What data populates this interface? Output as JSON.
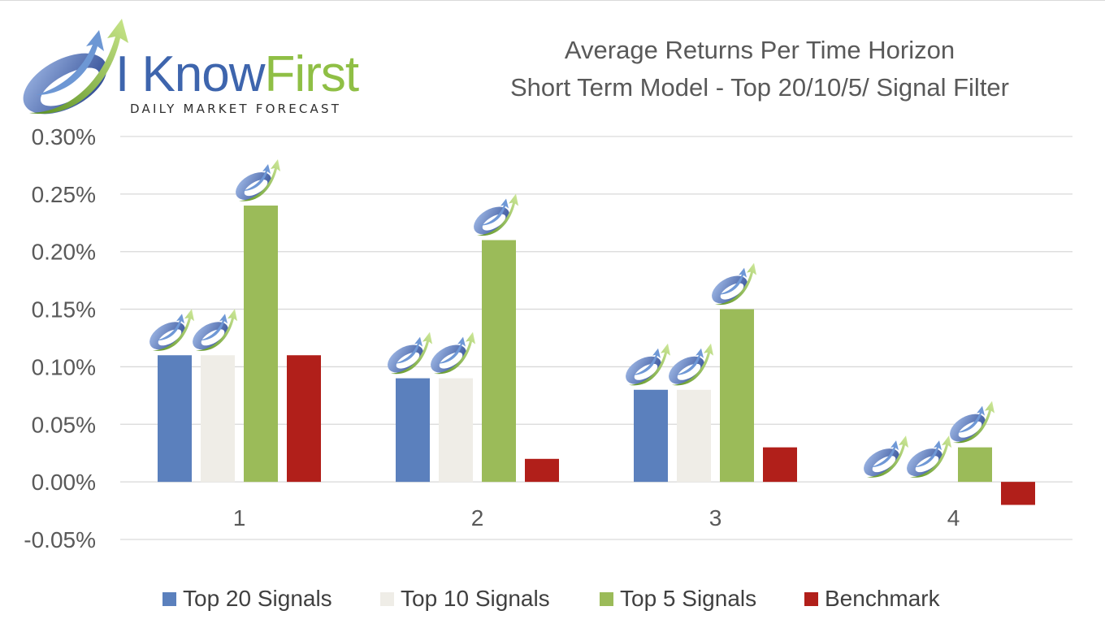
{
  "logo": {
    "word_left": "I Know",
    "word_right": "First",
    "tagline": "DAILY MARKET FORECAST",
    "colors": {
      "blue": "#3e65ad",
      "green": "#8fbf45"
    }
  },
  "chart_data": {
    "type": "bar",
    "title": "Average Returns Per Time Horizon",
    "subtitle": "Short Term Model - Top 20/10/5/ Signal Filter",
    "categories": [
      "1",
      "2",
      "3",
      "4"
    ],
    "series": [
      {
        "name": "Top 20 Signals",
        "color": "#5b80bd",
        "values": [
          0.11,
          0.09,
          0.08,
          0.0
        ]
      },
      {
        "name": "Top 10 Signals",
        "color": "#efede7",
        "values": [
          0.11,
          0.09,
          0.08,
          0.0
        ]
      },
      {
        "name": "Top 5 Signals",
        "color": "#9bbb59",
        "values": [
          0.24,
          0.21,
          0.15,
          0.03
        ]
      },
      {
        "name": "Benchmark",
        "color": "#b11f1a",
        "values": [
          0.11,
          0.02,
          0.03,
          -0.02
        ]
      }
    ],
    "ylim": [
      -0.05,
      0.3
    ],
    "yticks": [
      0.3,
      0.25,
      0.2,
      0.15,
      0.1,
      0.05,
      0.0,
      -0.05
    ],
    "ytick_labels": [
      "0.30%",
      "0.25%",
      "0.20%",
      "0.15%",
      "0.10%",
      "0.05%",
      "0.00%",
      "-0.05%"
    ],
    "grid": true,
    "legend_position": "bottom",
    "bar_markers": "logo-icon above the Top 20, Top 10 and Top 5 signal bars"
  }
}
